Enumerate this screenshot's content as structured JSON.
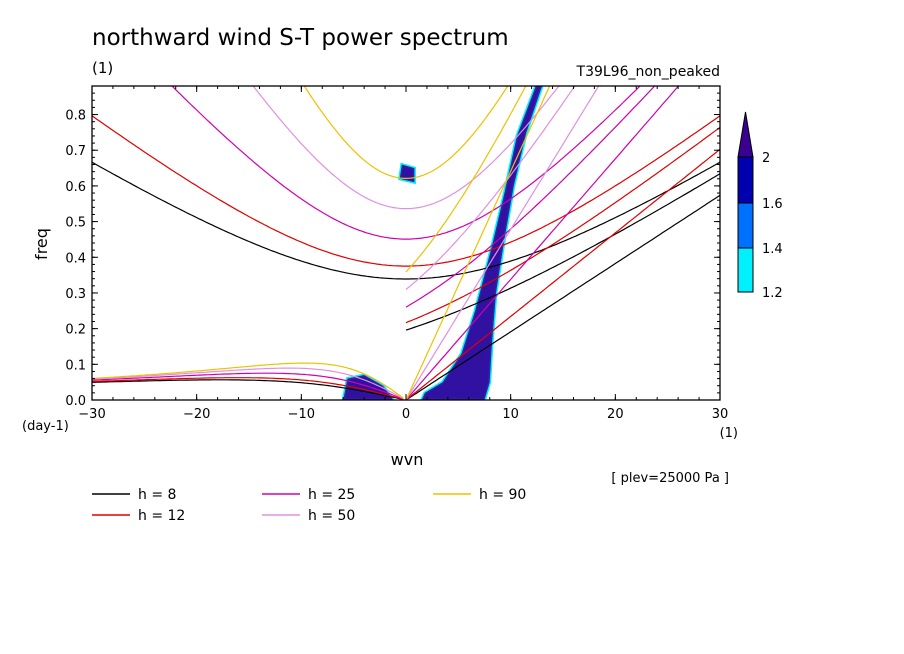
{
  "chart_data": {
    "type": "contour",
    "title": "northward wind S-T power spectrum",
    "subtitle_left": "(1)",
    "subtitle_right": "T39L96_non_peaked",
    "xlabel": "wvn",
    "ylabel": "freq",
    "x_unit": "(1)",
    "y_unit": "(day-1)",
    "annotation": "[ plev=25000 Pa ]",
    "xlim": [
      -30,
      30
    ],
    "ylim": [
      0,
      0.88
    ],
    "xticks": [
      -30,
      -20,
      -10,
      0,
      10,
      20,
      30
    ],
    "yticks": [
      0.0,
      0.1,
      0.2,
      0.3,
      0.4,
      0.5,
      0.6,
      0.7,
      0.8
    ],
    "ytick_labels": [
      "0.0",
      "0.1",
      "0.2",
      "0.3",
      "0.4",
      "0.5",
      "0.6",
      "0.7",
      "0.8"
    ],
    "colorbar": {
      "levels": [
        "1.2",
        "1.4",
        "1.6",
        "2"
      ],
      "colors": [
        "#00f0ff",
        "#0070ff",
        "#0000b0",
        "#3a0090"
      ]
    },
    "dispersion_curves": [
      {
        "label": "h =  8",
        "h": 8,
        "color": "#000000"
      },
      {
        "label": "h = 12",
        "h": 12,
        "color": "#e00000"
      },
      {
        "label": "h = 25",
        "h": 25,
        "color": "#d000b0"
      },
      {
        "label": "h = 50",
        "h": 50,
        "color": "#e090e0"
      },
      {
        "label": "h = 90",
        "h": 90,
        "color": "#f0c000"
      }
    ],
    "shaded_regions": [
      {
        "level": 2,
        "points": [
          [
            1.5,
            0
          ],
          [
            7.5,
            0
          ],
          [
            8,
            0.05
          ],
          [
            8.2,
            0.15
          ],
          [
            8.6,
            0.3
          ],
          [
            9.4,
            0.45
          ],
          [
            10.3,
            0.6
          ],
          [
            11.5,
            0.75
          ],
          [
            13,
            0.88
          ],
          [
            12.4,
            0.88
          ],
          [
            10.6,
            0.74
          ],
          [
            9.4,
            0.58
          ],
          [
            8.2,
            0.43
          ],
          [
            6.6,
            0.25
          ],
          [
            5.3,
            0.13
          ],
          [
            3.5,
            0.05
          ],
          [
            1.8,
            0.02
          ]
        ]
      },
      {
        "level": 2,
        "points": [
          [
            -6,
            0
          ],
          [
            -1.2,
            0
          ],
          [
            -2.2,
            0.04
          ],
          [
            -4,
            0.07
          ],
          [
            -5.6,
            0.06
          ]
        ]
      },
      {
        "level": 2,
        "points": [
          [
            -0.6,
            0.62
          ],
          [
            0.8,
            0.61
          ],
          [
            0.8,
            0.65
          ],
          [
            -0.4,
            0.66
          ]
        ]
      }
    ]
  }
}
